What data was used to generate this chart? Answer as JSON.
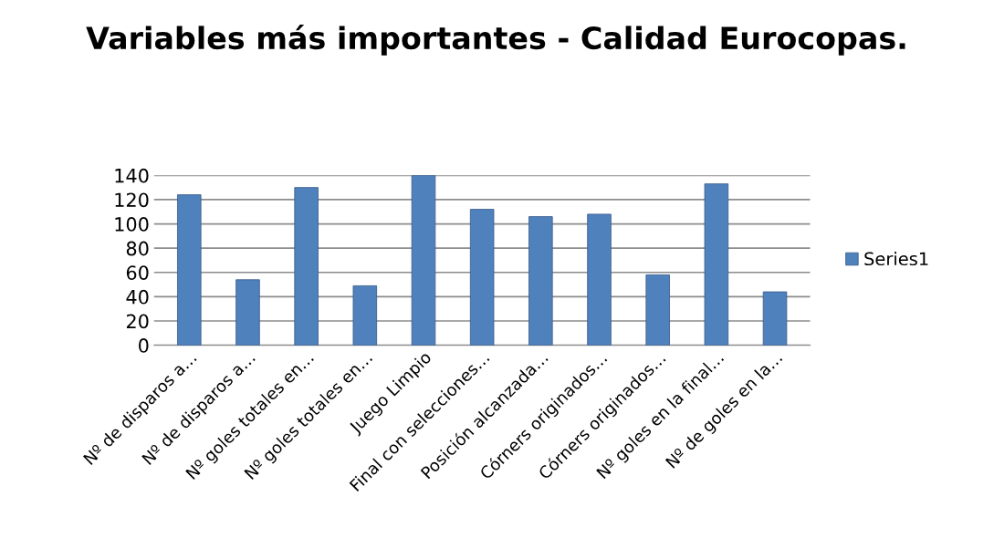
{
  "chart_data": {
    "type": "bar",
    "title": "Variables más importantes - Calidad Eurocopas.",
    "categories": [
      "Nº de disparos a…",
      "Nº de disparos a…",
      "Nº goles totales en…",
      "Nº goles totales en…",
      "Juego Limpio",
      "Final con selecciones…",
      "Posición alcanzada…",
      "Córners originados…",
      "Córners originados…",
      "Nº goles en la final…",
      "Nº de goles en la…"
    ],
    "series": [
      {
        "name": "Series1",
        "color": "#4f81bd",
        "values": [
          124,
          54,
          130,
          49,
          140,
          112,
          106,
          108,
          58,
          133,
          44
        ]
      }
    ],
    "ylim": [
      0,
      140
    ],
    "yticks": [
      0,
      20,
      40,
      60,
      80,
      100,
      120,
      140
    ],
    "grid": "y",
    "legend": "right"
  }
}
